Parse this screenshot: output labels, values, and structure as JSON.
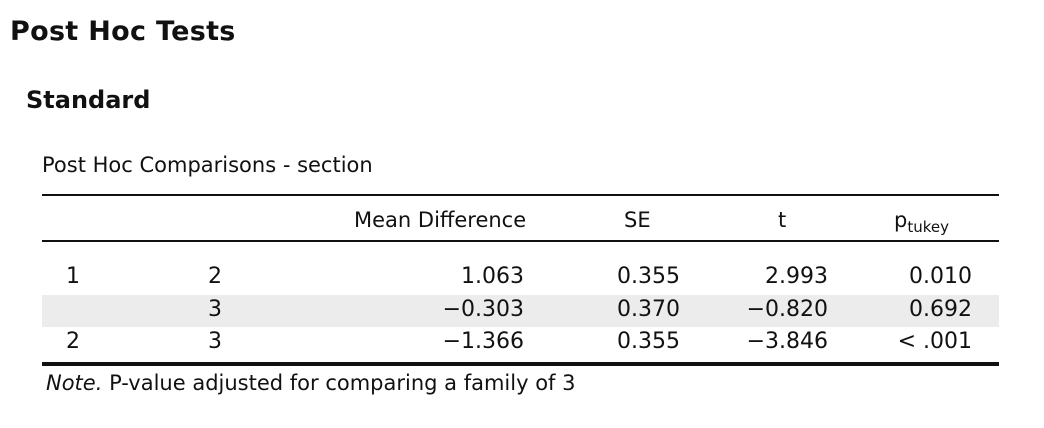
{
  "heading": "Post Hoc Tests",
  "subheading": "Standard",
  "table": {
    "caption": "Post Hoc Comparisons - section",
    "headers": {
      "mean_difference": "Mean Difference",
      "se": "SE",
      "t": "t",
      "p_main": "p",
      "p_sub": "tukey"
    },
    "rows": [
      {
        "group1": "1",
        "group2": "2",
        "mean_difference": "1.063",
        "se": "0.355",
        "t": "2.993",
        "p": "0.010"
      },
      {
        "group1": "",
        "group2": "3",
        "mean_difference": "−0.303",
        "se": "0.370",
        "t": "−0.820",
        "p": "0.692"
      },
      {
        "group1": "2",
        "group2": "3",
        "mean_difference": "−1.366",
        "se": "0.355",
        "t": "−3.846",
        "p": "< .001"
      }
    ],
    "note_label": "Note.",
    "note_text": "P-value adjusted for comparing a family of 3"
  },
  "colors": {
    "text": "#111111",
    "row_shading": "#ececec"
  }
}
